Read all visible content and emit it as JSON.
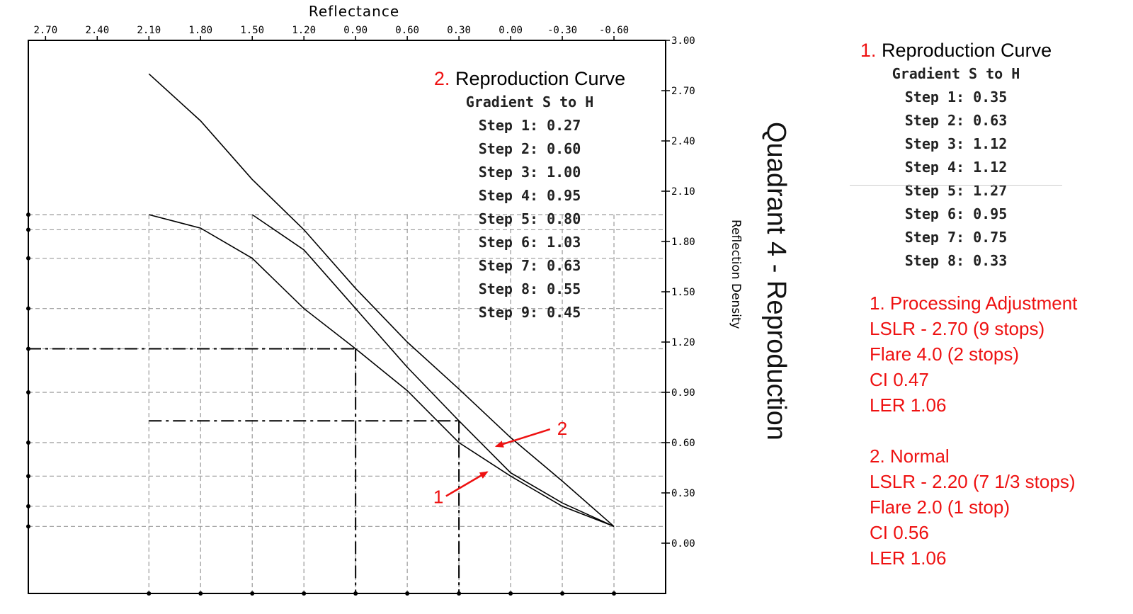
{
  "chart_data": {
    "type": "line",
    "title": "Quadrant 4 - Reproduction",
    "xlabel": "Reflectance",
    "ylabel": "Reflection Density",
    "x_ticks": [
      "2.70",
      "2.40",
      "2.10",
      "1.80",
      "1.50",
      "1.20",
      "0.90",
      "0.60",
      "0.30",
      "0.00",
      "-0.30",
      "-0.60"
    ],
    "y_ticks": [
      "3.00",
      "2.70",
      "2.40",
      "2.10",
      "1.80",
      "1.50",
      "1.20",
      "0.90",
      "0.60",
      "0.30",
      "0.00"
    ],
    "xlim": [
      2.8,
      -0.9
    ],
    "ylim": [
      -0.3,
      3.0
    ],
    "x_axis_reversed": true,
    "grid": "dashed guide lines",
    "series": [
      {
        "name": "1",
        "x": [
          2.1,
          1.8,
          1.5,
          1.2,
          0.9,
          0.6,
          0.3,
          0.0,
          -0.3,
          -0.6
        ],
        "y": [
          1.96,
          1.88,
          1.7,
          1.4,
          1.16,
          0.91,
          0.6,
          0.4,
          0.22,
          0.1
        ]
      },
      {
        "name": "2",
        "x": [
          1.5,
          1.2,
          0.9,
          0.6,
          0.3,
          0.0,
          -0.3,
          -0.6
        ],
        "y": [
          1.96,
          1.75,
          1.4,
          1.05,
          0.73,
          0.42,
          0.24,
          0.1
        ]
      },
      {
        "name": "",
        "x": [
          2.1,
          1.8,
          1.5,
          1.2,
          0.9,
          0.6,
          0.3,
          0.0,
          -0.3,
          -0.6
        ],
        "y": [
          2.8,
          2.52,
          2.17,
          1.87,
          1.52,
          1.2,
          0.92,
          0.63,
          0.37,
          0.1
        ]
      }
    ],
    "guides": {
      "horizontal_levels": [
        1.96,
        1.87,
        1.7,
        1.4,
        1.16,
        0.9,
        0.6,
        0.4,
        0.22,
        0.1
      ],
      "vertical_levels": [
        2.1,
        1.8,
        1.5,
        1.2,
        0.9,
        0.6,
        0.3,
        0.0,
        -0.3,
        -0.6
      ],
      "dashdot_lines": [
        {
          "x": [
            2.8,
            0.9
          ],
          "y": [
            1.16,
            1.16
          ]
        },
        {
          "x": [
            0.9,
            0.9
          ],
          "y": [
            1.16,
            -0.3
          ]
        },
        {
          "x": [
            2.1,
            0.3
          ],
          "y": [
            0.73,
            0.73
          ]
        },
        {
          "x": [
            0.3,
            0.3
          ],
          "y": [
            0.73,
            -0.3
          ]
        }
      ]
    },
    "annotations": [
      {
        "label": "2",
        "arrow_to_x": 0.1,
        "arrow_to_y": 0.57
      },
      {
        "label": "1",
        "arrow_to_x": 0.12,
        "arrow_to_y": 0.45
      }
    ]
  },
  "box2": {
    "number": "2.",
    "title": "Reproduction Curve",
    "subtitle": "Gradient S to H",
    "steps": [
      "Step 1: 0.27",
      "Step 2: 0.60",
      "Step 3: 1.00",
      "Step 4: 0.95",
      "Step 5: 0.80",
      "Step 6: 1.03",
      "Step 7: 0.63",
      "Step 8: 0.55",
      "Step 9: 0.45"
    ]
  },
  "box1": {
    "number": "1.",
    "title": "Reproduction Curve",
    "subtitle": "Gradient S to H",
    "steps": [
      "Step 1: 0.35",
      "Step 2: 0.63",
      "Step 3: 1.12",
      "Step 4: 1.12",
      "Step 5: 1.27",
      "Step 6: 0.95",
      "Step 7: 0.75",
      "Step 8: 0.33"
    ]
  },
  "notes": {
    "group1": [
      "1. Processing Adjustment",
      "LSLR - 2.70 (9 stops)",
      "Flare 4.0 (2 stops)",
      "CI 0.47",
      "LER 1.06"
    ],
    "group2": [
      "2. Normal",
      "LSLR - 2.20 (7 1/3 stops)",
      "Flare 2.0 (1 stop)",
      "CI 0.56",
      "LER 1.06"
    ]
  },
  "colors": {
    "accent_red": "#ee1111",
    "curve": "#000000",
    "guide": "#999999"
  }
}
